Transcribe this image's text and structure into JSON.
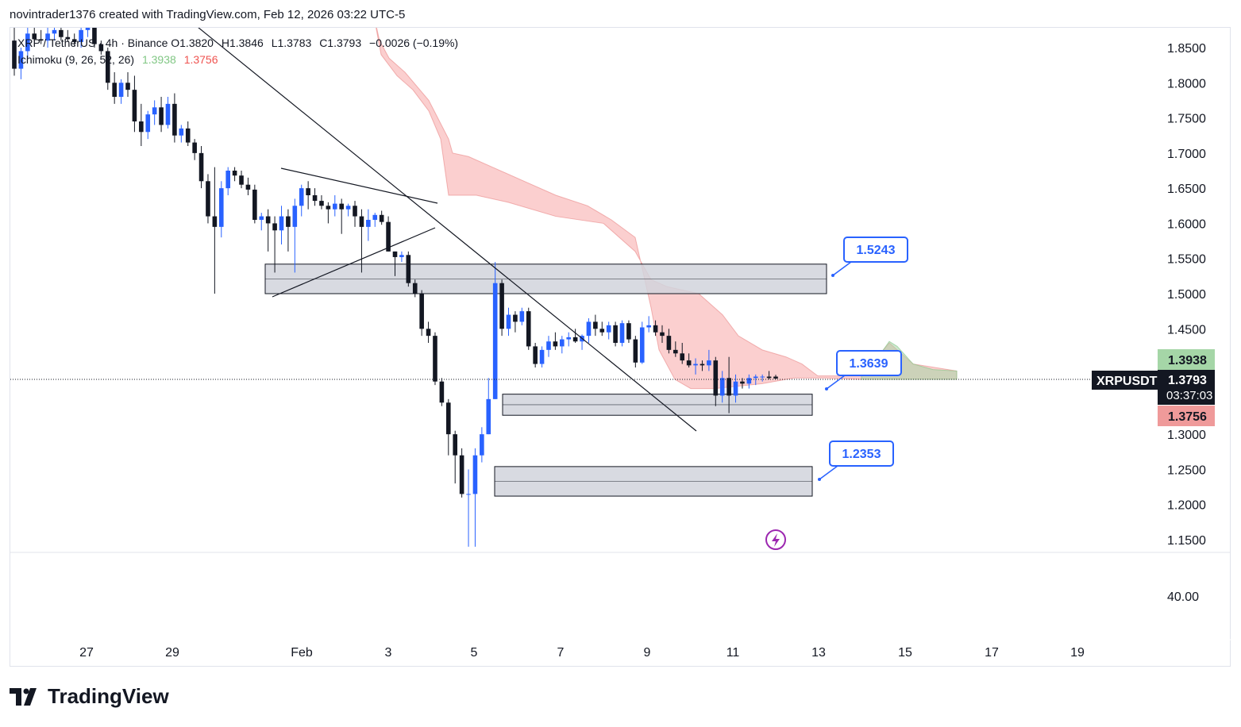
{
  "header": {
    "credit": "novintrader1376 created with TradingView.com, Feb 12, 2026 03:22 UTC-5"
  },
  "legend": {
    "symbol_line": "XRP / TetherUS · 4h · Binance",
    "open": "O1.3820",
    "high": "H1.3846",
    "low": "L1.3783",
    "close": "C1.3793",
    "change": "−0.0026 (−0.19%)",
    "ichimoku_label": "Ichimoku (9, 26, 52, 26)",
    "ichimoku_v1": "1.3938",
    "ichimoku_v2": "1.3756"
  },
  "price_scale": {
    "ticks": [
      "1.8500",
      "1.8000",
      "1.7500",
      "1.7000",
      "1.6500",
      "1.6000",
      "1.5500",
      "1.5000",
      "1.4500",
      "1.3000",
      "1.2500",
      "1.2000",
      "1.1500"
    ],
    "lower_pane_tick": "40.00",
    "symbol_tag": "XRPUSDT",
    "last_price": "1.3793",
    "countdown": "03:37:03",
    "span_a_badge": "1.3938",
    "span_b_badge": "1.3756"
  },
  "time_axis": {
    "labels": [
      "27",
      "29",
      "Feb",
      "3",
      "5",
      "7",
      "9",
      "11",
      "13",
      "15",
      "17",
      "19"
    ]
  },
  "annotations": {
    "callout_1": "1.5243",
    "callout_2": "1.3639",
    "callout_3": "1.2353"
  },
  "colors": {
    "bull": "#2962ff",
    "bear": "#131722",
    "cloud_bear": "#f7a8a8",
    "cloud_bull": "#a5d6a7",
    "callout": "#2962ff",
    "badge_green": "#a5d6a7",
    "badge_red": "#ef9a9a"
  },
  "brand": {
    "name": "TradingView"
  },
  "chart_data": {
    "type": "candlestick",
    "title": "XRP / TetherUS · 4h · Binance",
    "y_range": [
      1.14,
      1.87
    ],
    "date_range": [
      "Jan 26",
      "Feb 19"
    ],
    "last": {
      "open": 1.382,
      "high": 1.3846,
      "low": 1.3783,
      "close": 1.3793
    },
    "zones": [
      {
        "low": 1.5,
        "high": 1.542,
        "label": "1.5243"
      },
      {
        "low": 1.327,
        "high": 1.357,
        "label": "1.3639"
      },
      {
        "low": 1.212,
        "high": 1.254,
        "label": "1.2353"
      }
    ],
    "candles": [
      [
        1.86,
        1.88,
        1.81,
        1.82
      ],
      [
        1.82,
        1.85,
        1.805,
        1.845
      ],
      [
        1.845,
        1.88,
        1.835,
        1.87
      ],
      [
        1.87,
        1.885,
        1.86,
        1.862
      ],
      [
        1.862,
        1.875,
        1.855,
        1.86
      ],
      [
        1.86,
        1.88,
        1.85,
        1.87
      ],
      [
        1.87,
        1.89,
        1.86,
        1.875
      ],
      [
        1.875,
        1.885,
        1.86,
        1.865
      ],
      [
        1.865,
        1.875,
        1.858,
        1.862
      ],
      [
        1.862,
        1.87,
        1.852,
        1.858
      ],
      [
        1.858,
        1.88,
        1.85,
        1.875
      ],
      [
        1.875,
        1.89,
        1.865,
        1.88
      ],
      [
        1.88,
        1.89,
        1.85,
        1.855
      ],
      [
        1.855,
        1.86,
        1.84,
        1.845
      ],
      [
        1.845,
        1.85,
        1.79,
        1.8
      ],
      [
        1.8,
        1.815,
        1.77,
        1.78
      ],
      [
        1.78,
        1.805,
        1.77,
        1.8
      ],
      [
        1.8,
        1.815,
        1.78,
        1.79
      ],
      [
        1.79,
        1.81,
        1.73,
        1.745
      ],
      [
        1.745,
        1.77,
        1.71,
        1.73
      ],
      [
        1.73,
        1.76,
        1.72,
        1.755
      ],
      [
        1.755,
        1.775,
        1.74,
        1.765
      ],
      [
        1.765,
        1.78,
        1.73,
        1.74
      ],
      [
        1.74,
        1.78,
        1.735,
        1.77
      ],
      [
        1.77,
        1.785,
        1.715,
        1.725
      ],
      [
        1.725,
        1.74,
        1.715,
        1.735
      ],
      [
        1.735,
        1.745,
        1.71,
        1.715
      ],
      [
        1.715,
        1.72,
        1.69,
        1.7
      ],
      [
        1.7,
        1.71,
        1.65,
        1.66
      ],
      [
        1.66,
        1.67,
        1.6,
        1.61
      ],
      [
        1.61,
        1.68,
        1.5,
        1.595
      ],
      [
        1.595,
        1.66,
        1.58,
        1.65
      ],
      [
        1.65,
        1.68,
        1.64,
        1.675
      ],
      [
        1.675,
        1.68,
        1.66,
        1.668
      ],
      [
        1.668,
        1.675,
        1.65,
        1.655
      ],
      [
        1.655,
        1.665,
        1.64,
        1.648
      ],
      [
        1.648,
        1.655,
        1.6,
        1.605
      ],
      [
        1.605,
        1.615,
        1.59,
        1.61
      ],
      [
        1.61,
        1.62,
        1.56,
        1.6
      ],
      [
        1.6,
        1.61,
        1.53,
        1.59
      ],
      [
        1.59,
        1.625,
        1.57,
        1.61
      ],
      [
        1.61,
        1.62,
        1.56,
        1.595
      ],
      [
        1.595,
        1.635,
        1.53,
        1.625
      ],
      [
        1.625,
        1.655,
        1.61,
        1.65
      ],
      [
        1.65,
        1.66,
        1.62,
        1.64
      ],
      [
        1.64,
        1.65,
        1.625,
        1.632
      ],
      [
        1.632,
        1.64,
        1.62,
        1.625
      ],
      [
        1.625,
        1.63,
        1.6,
        1.62
      ],
      [
        1.62,
        1.64,
        1.61,
        1.628
      ],
      [
        1.628,
        1.635,
        1.585,
        1.62
      ],
      [
        1.62,
        1.628,
        1.61,
        1.625
      ],
      [
        1.625,
        1.632,
        1.595,
        1.61
      ],
      [
        1.61,
        1.62,
        1.53,
        1.595
      ],
      [
        1.595,
        1.62,
        1.575,
        1.605
      ],
      [
        1.605,
        1.615,
        1.595,
        1.612
      ],
      [
        1.612,
        1.618,
        1.598,
        1.602
      ],
      [
        1.602,
        1.61,
        1.56,
        1.56
      ],
      [
        1.56,
        1.56,
        1.525,
        1.552
      ],
      [
        1.552,
        1.56,
        1.545,
        1.555
      ],
      [
        1.555,
        1.56,
        1.51,
        1.515
      ],
      [
        1.515,
        1.52,
        1.495,
        1.5
      ],
      [
        1.5,
        1.505,
        1.44,
        1.45
      ],
      [
        1.45,
        1.46,
        1.43,
        1.44
      ],
      [
        1.44,
        1.445,
        1.37,
        1.375
      ],
      [
        1.375,
        1.38,
        1.34,
        1.345
      ],
      [
        1.345,
        1.35,
        1.27,
        1.3
      ],
      [
        1.3,
        1.305,
        1.23,
        1.27
      ],
      [
        1.27,
        1.28,
        1.21,
        1.215
      ],
      [
        1.215,
        1.25,
        1.14,
        1.215
      ],
      [
        1.215,
        1.28,
        1.14,
        1.27
      ],
      [
        1.27,
        1.31,
        1.26,
        1.3
      ],
      [
        1.3,
        1.38,
        1.3,
        1.35
      ],
      [
        1.35,
        1.545,
        1.35,
        1.515
      ],
      [
        1.515,
        1.52,
        1.44,
        1.45
      ],
      [
        1.45,
        1.48,
        1.44,
        1.47
      ],
      [
        1.47,
        1.475,
        1.445,
        1.46
      ],
      [
        1.46,
        1.48,
        1.455,
        1.475
      ],
      [
        1.475,
        1.48,
        1.42,
        1.425
      ],
      [
        1.425,
        1.43,
        1.395,
        1.4
      ],
      [
        1.4,
        1.425,
        1.395,
        1.42
      ],
      [
        1.42,
        1.44,
        1.41,
        1.432
      ],
      [
        1.432,
        1.445,
        1.42,
        1.425
      ],
      [
        1.425,
        1.44,
        1.415,
        1.435
      ],
      [
        1.435,
        1.445,
        1.425,
        1.438
      ],
      [
        1.438,
        1.45,
        1.43,
        1.432
      ],
      [
        1.432,
        1.442,
        1.42,
        1.44
      ],
      [
        1.44,
        1.465,
        1.43,
        1.46
      ],
      [
        1.46,
        1.47,
        1.44,
        1.45
      ],
      [
        1.45,
        1.46,
        1.44,
        1.445
      ],
      [
        1.445,
        1.46,
        1.435,
        1.455
      ],
      [
        1.455,
        1.46,
        1.425,
        1.43
      ],
      [
        1.43,
        1.462,
        1.425,
        1.458
      ],
      [
        1.458,
        1.462,
        1.43,
        1.435
      ],
      [
        1.435,
        1.44,
        1.395,
        1.402
      ],
      [
        1.402,
        1.46,
        1.4,
        1.452
      ],
      [
        1.452,
        1.468,
        1.445,
        1.455
      ],
      [
        1.455,
        1.462,
        1.44,
        1.445
      ],
      [
        1.445,
        1.455,
        1.43,
        1.44
      ],
      [
        1.44,
        1.45,
        1.415,
        1.42
      ],
      [
        1.42,
        1.432,
        1.41,
        1.415
      ],
      [
        1.415,
        1.43,
        1.4,
        1.405
      ],
      [
        1.405,
        1.415,
        1.395,
        1.398
      ],
      [
        1.398,
        1.408,
        1.385,
        1.4
      ],
      [
        1.4,
        1.405,
        1.39,
        1.398
      ],
      [
        1.398,
        1.42,
        1.39,
        1.405
      ],
      [
        1.405,
        1.41,
        1.34,
        1.355
      ],
      [
        1.355,
        1.39,
        1.345,
        1.38
      ],
      [
        1.38,
        1.41,
        1.33,
        1.355
      ],
      [
        1.355,
        1.385,
        1.345,
        1.375
      ],
      [
        1.375,
        1.38,
        1.365,
        1.372
      ],
      [
        1.372,
        1.385,
        1.365,
        1.38
      ],
      [
        1.38,
        1.385,
        1.37,
        1.382
      ],
      [
        1.382,
        1.385,
        1.375,
        1.382
      ],
      [
        1.382,
        1.39,
        1.378,
        1.38
      ],
      [
        1.382,
        1.3846,
        1.3783,
        1.3793
      ]
    ],
    "ichimoku": {
      "params": [
        9,
        26,
        52,
        26
      ],
      "cloud_upper": [
        [
          470,
          1.9
        ],
        [
          480,
          1.84
        ],
        [
          500,
          1.81
        ],
        [
          520,
          1.79
        ],
        [
          540,
          1.76
        ],
        [
          555,
          1.72
        ],
        [
          565,
          1.64
        ],
        [
          600,
          1.64
        ],
        [
          640,
          1.63
        ],
        [
          700,
          1.61
        ],
        [
          760,
          1.6
        ],
        [
          800,
          1.56
        ],
        [
          820,
          1.52
        ],
        [
          840,
          1.51
        ],
        [
          880,
          1.5
        ],
        [
          910,
          1.47
        ],
        [
          930,
          1.44
        ],
        [
          960,
          1.42
        ],
        [
          990,
          1.41
        ],
        [
          1010,
          1.4
        ],
        [
          1030,
          1.383
        ],
        [
          1085,
          1.383
        ],
        [
          1120,
          1.43
        ],
        [
          1150,
          1.4
        ],
        [
          1205,
          1.39
        ],
        [
          1205,
          1.378
        ],
        [
          1150,
          1.378
        ],
        [
          1085,
          1.378
        ],
        [
          1040,
          1.38
        ],
        [
          1000,
          1.38
        ],
        [
          960,
          1.372
        ],
        [
          900,
          1.365
        ],
        [
          870,
          1.365
        ],
        [
          850,
          1.378
        ],
        [
          830,
          1.42
        ],
        [
          820,
          1.48
        ],
        [
          800,
          1.58
        ],
        [
          770,
          1.605
        ],
        [
          740,
          1.625
        ],
        [
          700,
          1.64
        ],
        [
          660,
          1.66
        ],
        [
          620,
          1.68
        ],
        [
          590,
          1.695
        ],
        [
          570,
          1.7
        ],
        [
          565,
          1.72
        ],
        [
          540,
          1.775
        ],
        [
          510,
          1.815
        ],
        [
          490,
          1.835
        ],
        [
          478,
          1.86
        ],
        [
          470,
          1.9
        ]
      ],
      "span_a_last": 1.3938,
      "span_b_last": 1.3756
    },
    "trendlines": [
      {
        "from": [
          "Jan 29 00:00",
          1.88
        ],
        "to": [
          "Feb 10 16:00",
          1.305
        ]
      },
      {
        "from": [
          "Jan 31 08:00",
          1.68
        ],
        "to": [
          "Feb 4 00:00",
          1.625
        ]
      },
      {
        "from": [
          "Jan 31 08:00",
          1.49
        ],
        "to": [
          "Feb 4 00:00",
          1.6
        ]
      }
    ]
  }
}
